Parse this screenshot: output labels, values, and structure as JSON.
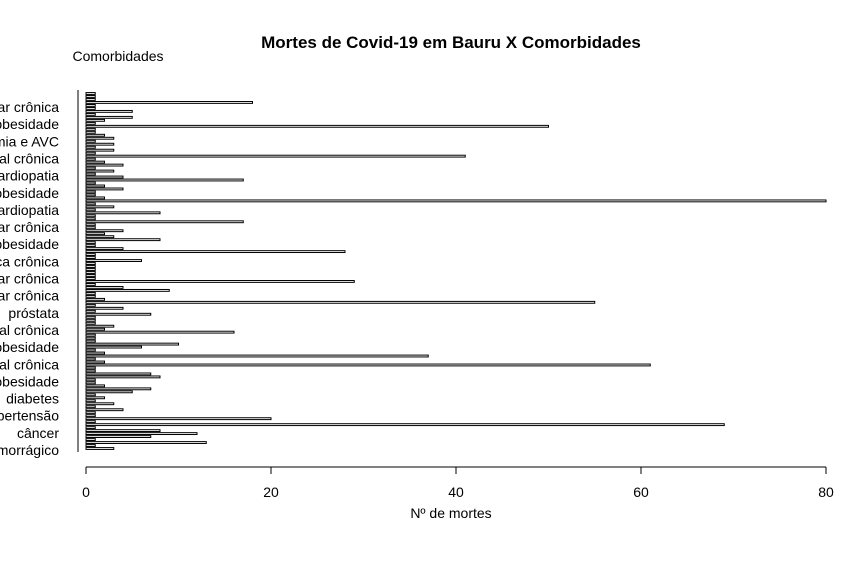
{
  "chart_data": {
    "type": "bar",
    "orientation": "horizontal",
    "title": "Mortes de Covid-19 em Bauru X Comorbidades",
    "xlabel": "Nº de mortes",
    "ylabel": "Comorbidades",
    "xlim": [
      0,
      80
    ],
    "x_ticks": [
      "0",
      "20",
      "40",
      "60",
      "80"
    ],
    "grid": false,
    "legend": "none",
    "bar_fill": "#ffffff",
    "bar_stroke": "#000000",
    "category_labels": [
      "hemorrágico",
      "câncer",
      "hipertensão",
      "diabetes",
      "obesidade",
      "renal crônica",
      "obesidade",
      "renal crônica",
      "próstata",
      "pulmonar crônica",
      "pulmonar crônica",
      "hepática crônica",
      "obesidade",
      "pulmonar crônica",
      "cardiopatia",
      "obesidade",
      "cardiopatia",
      "renal crônica",
      "isquemia e AVC",
      "obesidade",
      "pulmonar crônica"
    ],
    "values": [
      3,
      1,
      13,
      1,
      7,
      12,
      8,
      1,
      69,
      1,
      20,
      1,
      1,
      4,
      1,
      3,
      1,
      2,
      1,
      5,
      7,
      2,
      1,
      1,
      8,
      7,
      1,
      1,
      61,
      2,
      1,
      37,
      2,
      1,
      6,
      10,
      1,
      1,
      1,
      16,
      2,
      3,
      1,
      1,
      1,
      7,
      1,
      4,
      1,
      55,
      2,
      1,
      1,
      9,
      4,
      1,
      29,
      1,
      1,
      1,
      1,
      1,
      1,
      6,
      1,
      1,
      28,
      4,
      1,
      1,
      8,
      3,
      2,
      4,
      1,
      1,
      17,
      1,
      1,
      8,
      1,
      3,
      1,
      80,
      2,
      1,
      1,
      4,
      2,
      1,
      17,
      4,
      1,
      3,
      1,
      4,
      2,
      1,
      41,
      1,
      3,
      1,
      3,
      1,
      3,
      2,
      1,
      1,
      50,
      1,
      2,
      5,
      1,
      5,
      1,
      1,
      18,
      1,
      1,
      1
    ]
  }
}
